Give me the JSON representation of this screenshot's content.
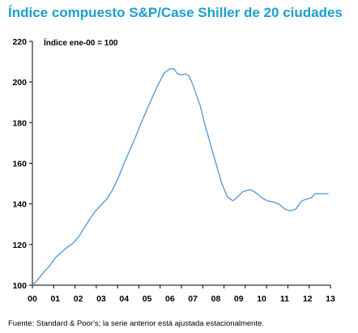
{
  "chart_data": {
    "type": "line",
    "title": "Índice compuesto S&P/Case Shiller de 20 ciudades",
    "annotation": "Índice ene-00 = 100",
    "source": "Fuente: Standard & Poor's; la serie anterior está ajustada estacionalmente.",
    "xlabel": "",
    "ylabel": "",
    "x_tick_labels": [
      "00",
      "01",
      "02",
      "03",
      "04",
      "05",
      "06",
      "07",
      "08",
      "09",
      "10",
      "11",
      "12",
      "13"
    ],
    "xlim": [
      2000,
      2013
    ],
    "ylim": [
      100,
      220
    ],
    "y_ticks": [
      100,
      120,
      140,
      160,
      180,
      200,
      220
    ],
    "grid": false,
    "legend": "none",
    "line_color": "#5b9bd5",
    "series": [
      {
        "x": [
          2000.0,
          2000.25,
          2000.5,
          2000.75,
          2001.0,
          2001.25,
          2001.5,
          2001.75,
          2002.0,
          2002.25,
          2002.5,
          2002.75,
          2003.0,
          2003.25,
          2003.5,
          2003.75,
          2004.0,
          2004.25,
          2004.5,
          2004.75,
          2005.0,
          2005.25,
          2005.5,
          2005.75,
          2006.0,
          2006.17,
          2006.33,
          2006.5,
          2006.67,
          2006.83,
          2007.0,
          2007.17,
          2007.33,
          2007.5,
          2007.75,
          2008.0,
          2008.25,
          2008.5,
          2008.75,
          2009.0,
          2009.17,
          2009.33,
          2009.5,
          2009.75,
          2010.0,
          2010.25,
          2010.5,
          2010.75,
          2011.0,
          2011.25,
          2011.5,
          2011.75,
          2012.0,
          2012.17,
          2012.33,
          2012.5,
          2012.75,
          2012.92
        ],
        "y": [
          100.0,
          103.0,
          106.5,
          109.5,
          113.5,
          116.0,
          118.5,
          120.5,
          123.5,
          128.0,
          132.5,
          136.5,
          139.5,
          142.5,
          147.0,
          153.0,
          160.0,
          166.5,
          173.0,
          180.0,
          186.5,
          193.0,
          199.0,
          204.5,
          206.5,
          206.5,
          204.0,
          203.5,
          204.0,
          203.0,
          198.5,
          193.0,
          188.0,
          180.0,
          170.0,
          160.0,
          150.5,
          143.5,
          141.5,
          144.0,
          146.0,
          146.5,
          147.0,
          145.5,
          143.0,
          141.5,
          141.0,
          140.0,
          137.5,
          136.5,
          137.5,
          141.5,
          142.5,
          143.0,
          145.0,
          145.0,
          145.0,
          145.0
        ]
      }
    ]
  }
}
